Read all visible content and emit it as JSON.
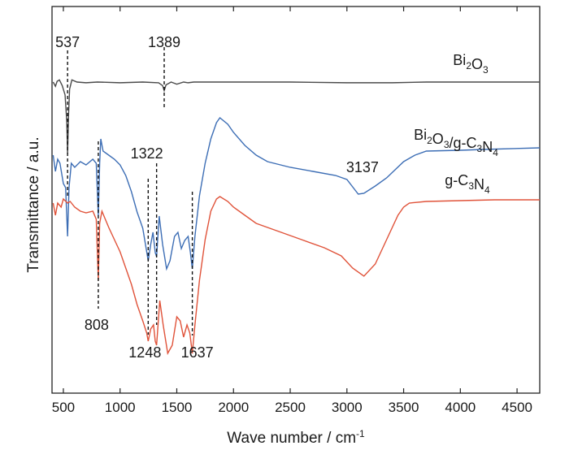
{
  "chart_data": {
    "type": "line",
    "xlabel": "Wave number / cm",
    "xlabel_sup": "-1",
    "ylabel": "Transmittance / a.u.",
    "xlim": [
      400,
      4700
    ],
    "xticks": [
      "500",
      "1000",
      "1500",
      "2000",
      "2500",
      "3000",
      "3500",
      "4000",
      "4500"
    ],
    "ytick_labels": "none",
    "grid": false,
    "colors": {
      "Bi2O3": "#4a4a4a",
      "composite": "#3d6eb5",
      "gC3N4": "#e0533a"
    },
    "series": [
      {
        "name": "Bi₂O₃",
        "label_parts": [
          [
            "Bi",
            ""
          ],
          [
            "2",
            "sub"
          ],
          [
            "O",
            ""
          ],
          [
            "3",
            "sub"
          ]
        ],
        "color_key": "Bi2O3",
        "points": [
          [
            410,
            0.0
          ],
          [
            430,
            -0.06
          ],
          [
            445,
            0.01
          ],
          [
            465,
            0.03
          ],
          [
            490,
            -0.05
          ],
          [
            515,
            -0.18
          ],
          [
            530,
            -0.55
          ],
          [
            537,
            -1.0
          ],
          [
            546,
            -0.45
          ],
          [
            555,
            -0.1
          ],
          [
            575,
            0.03
          ],
          [
            620,
            0.0
          ],
          [
            700,
            -0.01
          ],
          [
            800,
            0.0
          ],
          [
            1000,
            -0.01
          ],
          [
            1200,
            0.0
          ],
          [
            1340,
            -0.01
          ],
          [
            1375,
            -0.05
          ],
          [
            1389,
            -0.12
          ],
          [
            1405,
            -0.04
          ],
          [
            1450,
            0.0
          ],
          [
            1500,
            -0.03
          ],
          [
            1560,
            0.0
          ],
          [
            1600,
            -0.01
          ],
          [
            1650,
            0.0
          ],
          [
            2000,
            0.0
          ],
          [
            2500,
            0.0
          ],
          [
            3000,
            -0.01
          ],
          [
            3400,
            -0.01
          ],
          [
            3700,
            0.0
          ],
          [
            4000,
            0.0
          ],
          [
            4700,
            0.0
          ]
        ]
      },
      {
        "name": "Bi₂O₃/g-C₃N₄",
        "label_parts": [
          [
            "Bi",
            ""
          ],
          [
            "2",
            "sub"
          ],
          [
            "O",
            ""
          ],
          [
            "3",
            "sub"
          ],
          [
            "/g-C",
            ""
          ],
          [
            "3",
            "sub"
          ],
          [
            "N",
            ""
          ],
          [
            "4",
            "sub"
          ]
        ],
        "color_key": "composite",
        "points": [
          [
            410,
            0.0
          ],
          [
            430,
            -0.2
          ],
          [
            450,
            -0.05
          ],
          [
            470,
            -0.1
          ],
          [
            500,
            -0.35
          ],
          [
            520,
            -0.4
          ],
          [
            537,
            -1.0
          ],
          [
            550,
            -0.4
          ],
          [
            570,
            -0.1
          ],
          [
            600,
            -0.15
          ],
          [
            650,
            -0.08
          ],
          [
            700,
            -0.12
          ],
          [
            760,
            -0.05
          ],
          [
            790,
            -0.1
          ],
          [
            808,
            -0.75
          ],
          [
            820,
            -0.1
          ],
          [
            830,
            0.2
          ],
          [
            850,
            0.05
          ],
          [
            900,
            0.0
          ],
          [
            950,
            -0.05
          ],
          [
            1000,
            -0.12
          ],
          [
            1050,
            -0.25
          ],
          [
            1100,
            -0.45
          ],
          [
            1150,
            -0.7
          ],
          [
            1200,
            -0.9
          ],
          [
            1248,
            -1.3
          ],
          [
            1270,
            -1.1
          ],
          [
            1290,
            -0.95
          ],
          [
            1310,
            -1.2
          ],
          [
            1322,
            -1.25
          ],
          [
            1345,
            -0.75
          ],
          [
            1375,
            -1.1
          ],
          [
            1410,
            -1.4
          ],
          [
            1440,
            -1.3
          ],
          [
            1480,
            -1.0
          ],
          [
            1510,
            -0.95
          ],
          [
            1540,
            -1.15
          ],
          [
            1570,
            -1.05
          ],
          [
            1600,
            -1.0
          ],
          [
            1620,
            -1.2
          ],
          [
            1637,
            -1.4
          ],
          [
            1660,
            -1.0
          ],
          [
            1700,
            -0.5
          ],
          [
            1750,
            -0.1
          ],
          [
            1800,
            0.2
          ],
          [
            1850,
            0.4
          ],
          [
            1880,
            0.46
          ],
          [
            1950,
            0.38
          ],
          [
            2000,
            0.28
          ],
          [
            2100,
            0.12
          ],
          [
            2200,
            0.0
          ],
          [
            2300,
            -0.08
          ],
          [
            2500,
            -0.15
          ],
          [
            2700,
            -0.2
          ],
          [
            2900,
            -0.25
          ],
          [
            3000,
            -0.3
          ],
          [
            3100,
            -0.48
          ],
          [
            3150,
            -0.47
          ],
          [
            3250,
            -0.38
          ],
          [
            3350,
            -0.28
          ],
          [
            3500,
            -0.08
          ],
          [
            3600,
            0.0
          ],
          [
            3700,
            0.05
          ],
          [
            4000,
            0.06
          ],
          [
            4200,
            0.07
          ],
          [
            4700,
            0.09
          ]
        ]
      },
      {
        "name": "g-C₃N₄",
        "label_parts": [
          [
            "g-C",
            ""
          ],
          [
            "3",
            "sub"
          ],
          [
            "N",
            ""
          ],
          [
            "4",
            "sub"
          ]
        ],
        "color_key": "gC3N4",
        "points": [
          [
            410,
            0.0
          ],
          [
            430,
            -0.15
          ],
          [
            450,
            0.0
          ],
          [
            480,
            -0.05
          ],
          [
            500,
            0.05
          ],
          [
            537,
            0.0
          ],
          [
            560,
            0.02
          ],
          [
            600,
            -0.05
          ],
          [
            650,
            -0.1
          ],
          [
            700,
            -0.12
          ],
          [
            760,
            -0.1
          ],
          [
            790,
            -0.2
          ],
          [
            808,
            -0.95
          ],
          [
            820,
            -0.25
          ],
          [
            840,
            -0.1
          ],
          [
            870,
            -0.2
          ],
          [
            900,
            -0.3
          ],
          [
            950,
            -0.45
          ],
          [
            1000,
            -0.6
          ],
          [
            1050,
            -0.8
          ],
          [
            1100,
            -1.0
          ],
          [
            1150,
            -1.25
          ],
          [
            1200,
            -1.45
          ],
          [
            1235,
            -1.6
          ],
          [
            1248,
            -1.7
          ],
          [
            1270,
            -1.55
          ],
          [
            1295,
            -1.5
          ],
          [
            1310,
            -1.7
          ],
          [
            1322,
            -1.75
          ],
          [
            1350,
            -1.2
          ],
          [
            1380,
            -1.5
          ],
          [
            1420,
            -1.85
          ],
          [
            1460,
            -1.75
          ],
          [
            1500,
            -1.4
          ],
          [
            1530,
            -1.45
          ],
          [
            1560,
            -1.65
          ],
          [
            1590,
            -1.5
          ],
          [
            1615,
            -1.6
          ],
          [
            1637,
            -1.85
          ],
          [
            1660,
            -1.5
          ],
          [
            1700,
            -0.95
          ],
          [
            1750,
            -0.45
          ],
          [
            1800,
            -0.1
          ],
          [
            1850,
            0.05
          ],
          [
            1880,
            0.08
          ],
          [
            1950,
            0.02
          ],
          [
            2000,
            -0.05
          ],
          [
            2100,
            -0.15
          ],
          [
            2200,
            -0.25
          ],
          [
            2400,
            -0.35
          ],
          [
            2600,
            -0.45
          ],
          [
            2800,
            -0.55
          ],
          [
            2950,
            -0.65
          ],
          [
            3050,
            -0.8
          ],
          [
            3150,
            -0.9
          ],
          [
            3250,
            -0.75
          ],
          [
            3350,
            -0.45
          ],
          [
            3450,
            -0.15
          ],
          [
            3500,
            -0.05
          ],
          [
            3550,
            0.0
          ],
          [
            3700,
            0.02
          ],
          [
            4000,
            0.03
          ],
          [
            4300,
            0.04
          ],
          [
            4700,
            0.04
          ]
        ]
      }
    ],
    "annotations": [
      {
        "text": "537",
        "x": 537
      },
      {
        "text": "1389",
        "x": 1389
      },
      {
        "text": "808",
        "x": 808
      },
      {
        "text": "1322",
        "x": 1322
      },
      {
        "text": "1248",
        "x": 1248
      },
      {
        "text": "1637",
        "x": 1637
      },
      {
        "text": "3137",
        "x": 3137
      }
    ]
  }
}
